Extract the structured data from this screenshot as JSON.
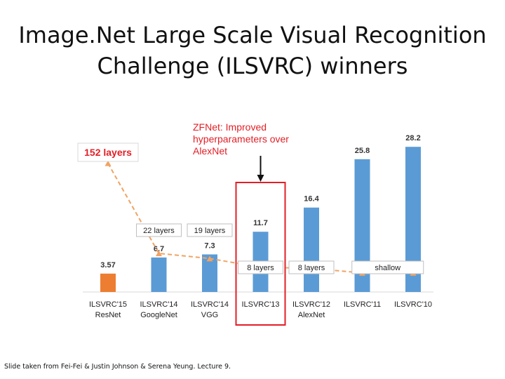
{
  "title": {
    "line1": "Image.Net Large Scale Visual Recognition",
    "line2": "Challenge (ILSVRC) winners"
  },
  "credit": "Slide taken from Fei-Fei & Justin Johnson & Serena Yeung. Lecture 9.",
  "colors": {
    "bar_blue": "#5b9bd5",
    "bar_orange": "#ed7d31",
    "trend_orange": "#f0a363",
    "highlight_red": "#e21f26",
    "label_dark": "#333333"
  },
  "chart_data": {
    "type": "bar",
    "categories": [
      "ILSVRC'15",
      "ILSVRC'14",
      "ILSVRC'14",
      "ILSVRC'13",
      "ILSVRC'12",
      "ILSVRC'11",
      "ILSVRC'10"
    ],
    "subcategories": [
      "ResNet",
      "GoogleNet",
      "VGG",
      "",
      "AlexNet",
      "",
      ""
    ],
    "values": [
      3.57,
      6.7,
      7.3,
      11.7,
      16.4,
      25.8,
      28.2
    ],
    "value_labels": [
      "3.57",
      "6.7",
      "7.3",
      "11.7",
      "16.4",
      "25.8",
      "28.2"
    ],
    "bar_colors": [
      "#ed7d31",
      "#5b9bd5",
      "#5b9bd5",
      "#5b9bd5",
      "#5b9bd5",
      "#5b9bd5",
      "#5b9bd5"
    ],
    "ylim": [
      0,
      30
    ],
    "grid": false,
    "depth_labels": [
      {
        "text": "152 layers",
        "style": "highlight",
        "index": 0
      },
      {
        "text": "22 layers",
        "style": "box",
        "index": 1
      },
      {
        "text": "19 layers",
        "style": "box",
        "index": 2
      },
      {
        "text": "8 layers",
        "style": "box",
        "index": 3
      },
      {
        "text": "8 layers",
        "style": "box",
        "index": 4
      },
      {
        "text": "shallow",
        "style": "box",
        "indices": [
          5,
          6
        ]
      }
    ],
    "depth_trend": {
      "type": "line",
      "style": "dashed",
      "marker": "triangle",
      "values": [
        25,
        7.5,
        6.5,
        4.8,
        4.6,
        3.7,
        3.7
      ]
    },
    "annotation": {
      "lines": [
        "ZFNet: Improved",
        "hyperparameters over",
        "AlexNet"
      ],
      "target_index": 3
    }
  }
}
